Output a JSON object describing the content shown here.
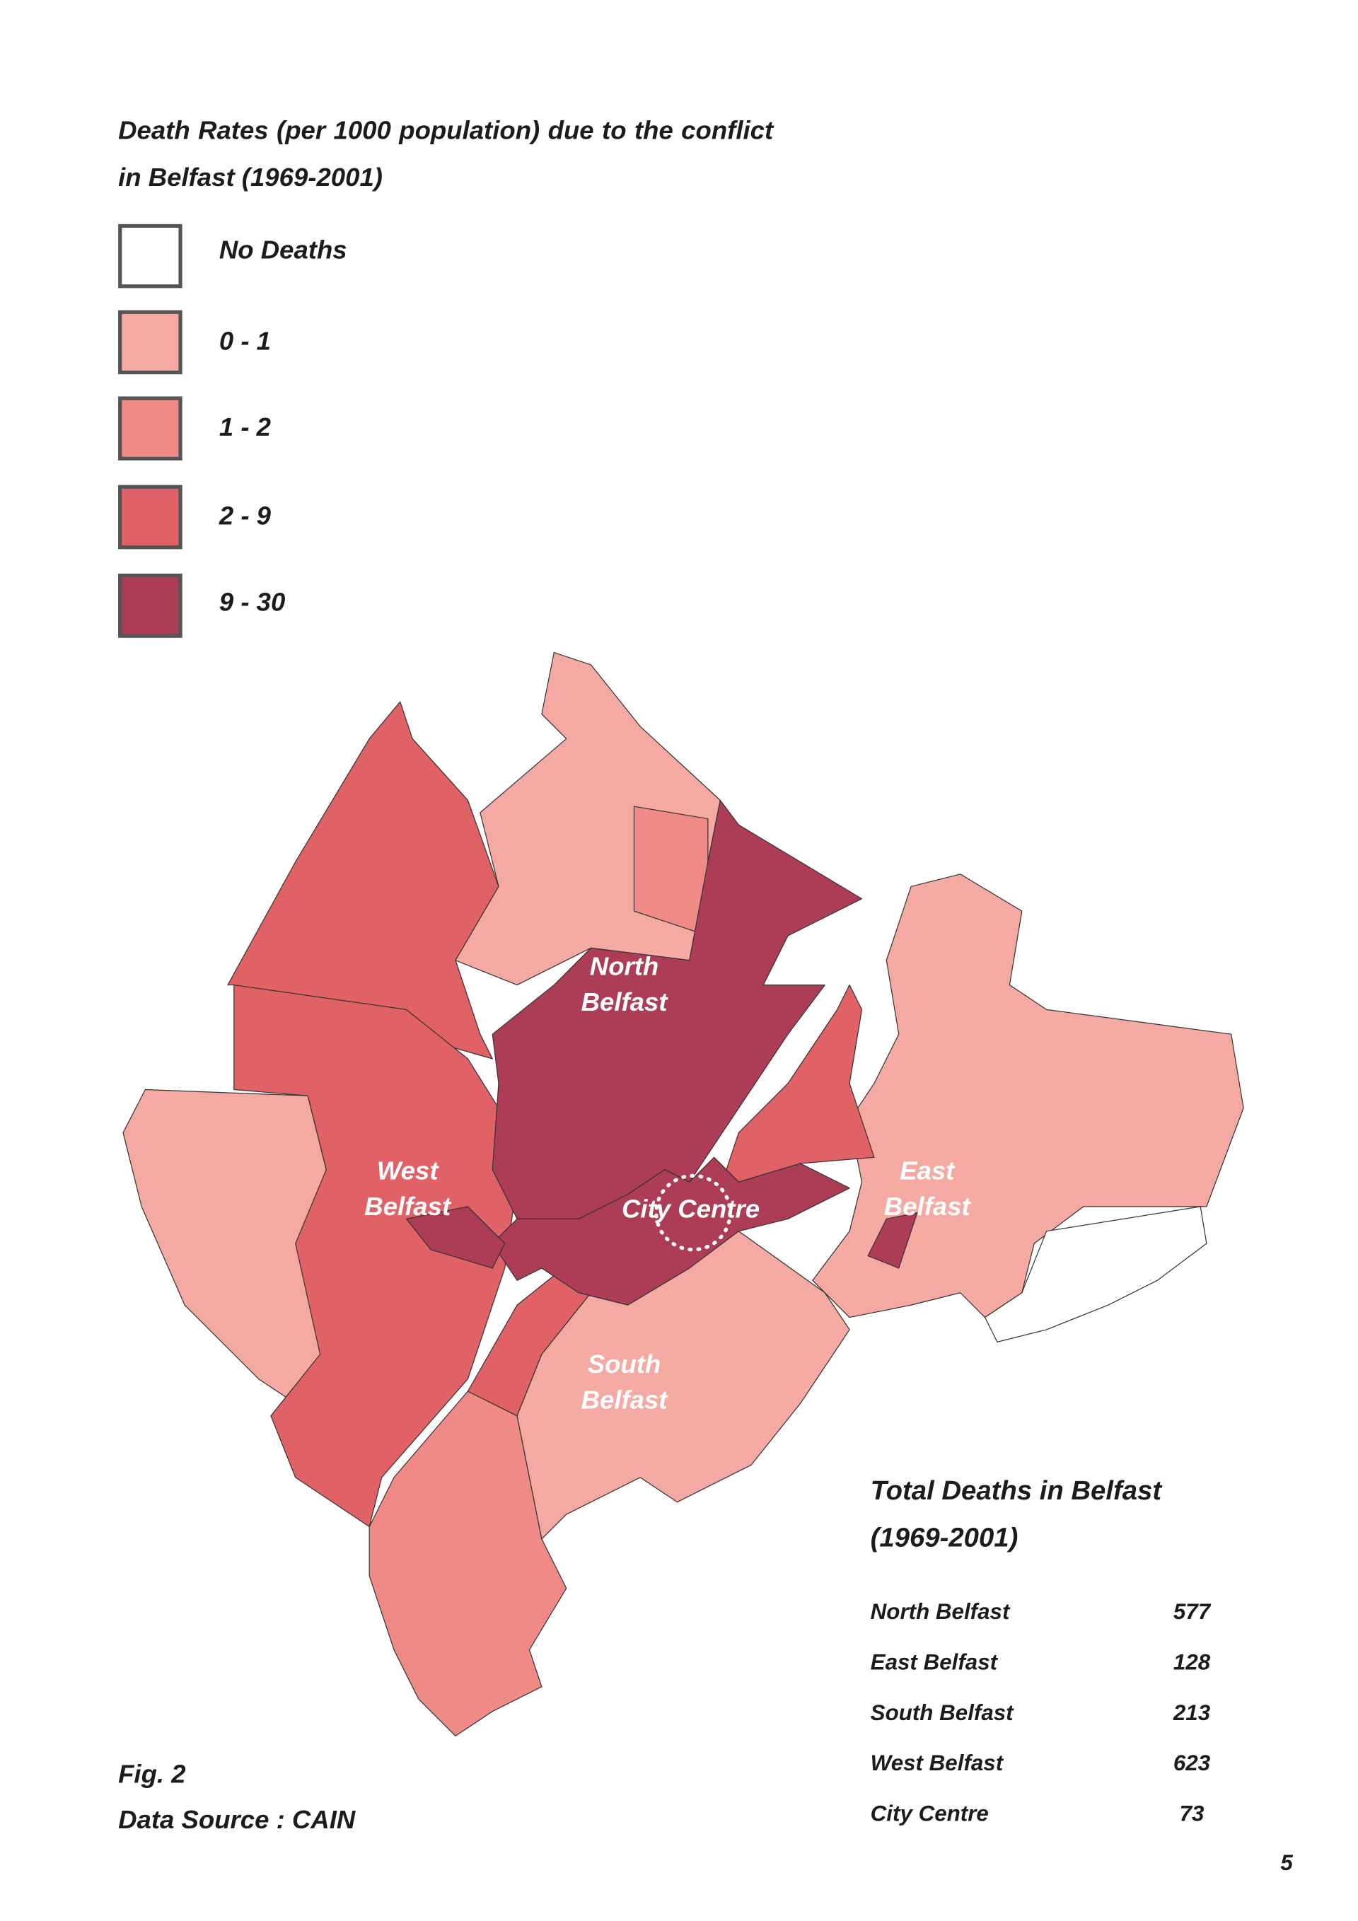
{
  "title": "Death Rates (per 1000 population) due to the conflict in Belfast (1969-2001)",
  "legend": [
    {
      "label": "No Deaths",
      "color": "#ffffff"
    },
    {
      "label": "0 - 1",
      "color": "#f4a9a3"
    },
    {
      "label": "1 - 2",
      "color": "#f08a86"
    },
    {
      "label": "2 - 9",
      "color": "#e06166"
    },
    {
      "label": "9 - 30",
      "color": "#ad3c57"
    }
  ],
  "map_labels": [
    "North Belfast",
    "West Belfast",
    "City Centre",
    "East Belfast",
    "South Belfast"
  ],
  "table": {
    "title": "Total Deaths in Belfast (1969-2001)",
    "rows": [
      [
        "North Belfast",
        577
      ],
      [
        "East Belfast",
        128
      ],
      [
        "South Belfast",
        213
      ],
      [
        "West Belfast",
        623
      ],
      [
        "City Centre",
        73
      ]
    ]
  },
  "figure": "Fig. 2",
  "source": "Data Source : CAIN",
  "page_number": 5
}
